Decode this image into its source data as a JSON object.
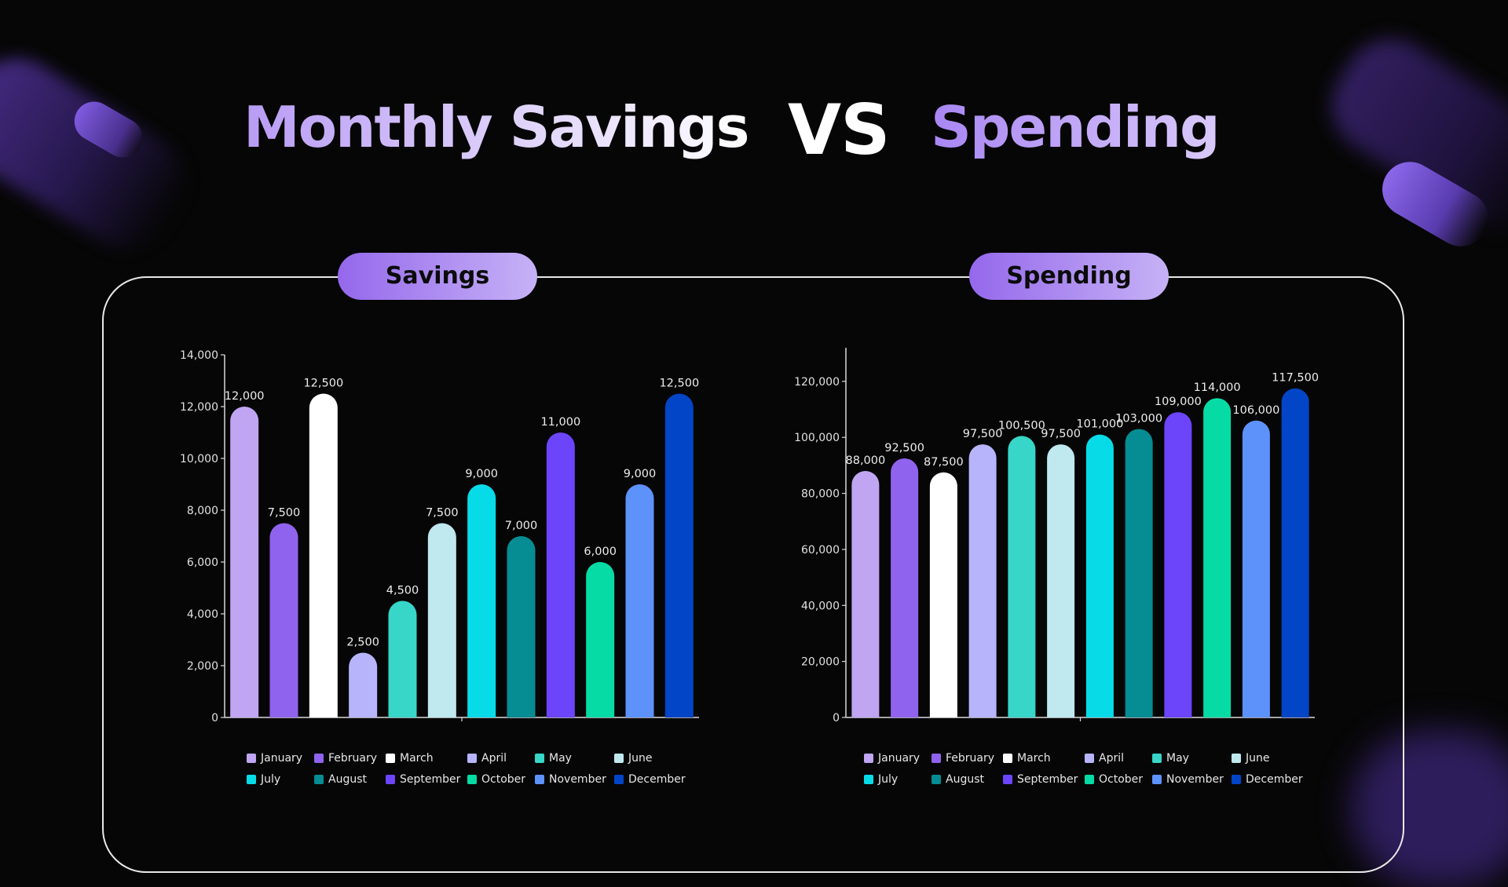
{
  "title": {
    "part1": "Monthly Savings",
    "part2": "VS",
    "part3": "Spending"
  },
  "pills": {
    "savings": "Savings",
    "spending": "Spending"
  },
  "colors": {
    "January": "#bfa5f2",
    "February": "#9063ee",
    "March": "#ffffff",
    "April": "#b7b4fb",
    "May": "#37d6c8",
    "June": "#bfe8ef",
    "July": "#07dbe8",
    "August": "#068c93",
    "September": "#6c45fb",
    "October": "#06dba5",
    "November": "#5d92fb",
    "December": "#0245c6"
  },
  "chart_data": [
    {
      "type": "bar",
      "name": "savings",
      "categories": [
        "January",
        "February",
        "March",
        "April",
        "May",
        "June",
        "July",
        "August",
        "September",
        "October",
        "November",
        "December"
      ],
      "values": [
        12000,
        7500,
        12500,
        2500,
        4500,
        7500,
        9000,
        7000,
        11000,
        6000,
        9000,
        12500
      ],
      "value_labels": [
        "12,000",
        "7,500",
        "12,500",
        "2,500",
        "4,500",
        "7,500",
        "9,000",
        "7,000",
        "11,000",
        "6,000",
        "9,000",
        "12,500"
      ],
      "ylim": [
        0,
        14000
      ],
      "yticks": [
        0,
        2000,
        4000,
        6000,
        8000,
        10000,
        12000,
        14000
      ],
      "ytick_labels": [
        "0",
        "2,000",
        "4,000",
        "6,000",
        "8,000",
        "10,000",
        "12,000",
        "14,000"
      ],
      "legend": [
        "January",
        "February",
        "March",
        "April",
        "May",
        "June",
        "July",
        "August",
        "September",
        "October",
        "November",
        "December"
      ],
      "legend_position": "bottom",
      "grid": false
    },
    {
      "type": "bar",
      "name": "spending",
      "categories": [
        "January",
        "February",
        "March",
        "April",
        "May",
        "June",
        "July",
        "August",
        "September",
        "October",
        "November",
        "December"
      ],
      "values": [
        88000,
        92500,
        87500,
        97500,
        100500,
        97500,
        101000,
        103000,
        109000,
        114000,
        106000,
        117500
      ],
      "value_labels": [
        "88,000",
        "92,500",
        "87,500",
        "97,500",
        "100,500",
        "97,500",
        "101,000",
        "103,000",
        "109,000",
        "114,000",
        "106,000",
        "117,500"
      ],
      "ylim": [
        0,
        132000
      ],
      "yticks": [
        0,
        20000,
        40000,
        60000,
        80000,
        100000,
        120000
      ],
      "ytick_labels": [
        "0",
        "20,000",
        "40,000",
        "60,000",
        "80,000",
        "100,000",
        "120,000"
      ],
      "legend": [
        "January",
        "February",
        "March",
        "April",
        "May",
        "June",
        "July",
        "August",
        "September",
        "October",
        "November",
        "December"
      ],
      "legend_position": "bottom",
      "grid": false
    }
  ]
}
